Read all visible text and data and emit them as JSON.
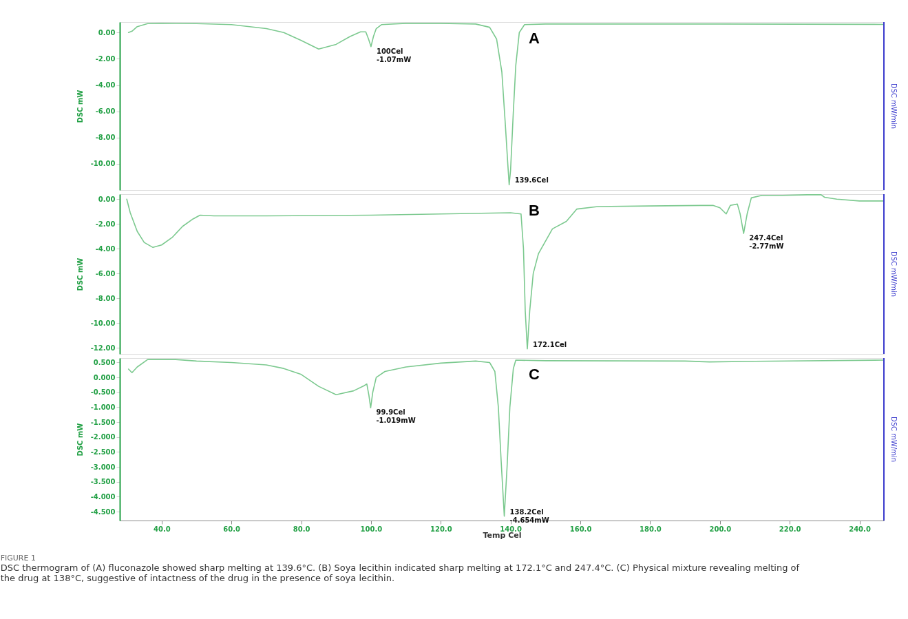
{
  "chart_data": [
    {
      "type": "line",
      "ylabel": "DSC mW",
      "y2label": "DSC mW/min",
      "xlim": [
        28,
        247
      ],
      "ylim": [
        -12,
        0.8
      ],
      "tick_labels": "y",
      "grid": false,
      "marker": "none",
      "line_style": "solid",
      "yticks": [
        {
          "value": 0,
          "label": "0.00"
        },
        {
          "value": -2,
          "label": "-2.00"
        },
        {
          "value": -4,
          "label": "-4.00"
        },
        {
          "value": -6,
          "label": "-6.00"
        },
        {
          "value": -8,
          "label": "-8.00"
        },
        {
          "value": -10,
          "label": "-10.00"
        }
      ],
      "annotations": [
        "A",
        {
          "text": "100Cel\n-1.07mW",
          "x": 100,
          "y": -1.07
        },
        {
          "text": "139.6Cel",
          "x": 139.6,
          "y": -11.6
        }
      ],
      "series": [
        {
          "color": "#7cc98f",
          "x": [
            30.5,
            31.5,
            33,
            36,
            40,
            50,
            60,
            70,
            75,
            80,
            85,
            90,
            94,
            97,
            98.5,
            99.3,
            100,
            100.7,
            101.5,
            103,
            110,
            120,
            130,
            134,
            136,
            137.5,
            138.5,
            139.2,
            139.6,
            140,
            140.8,
            141.5,
            142.5,
            144,
            150,
            200,
            247
          ],
          "values": [
            0,
            0.1,
            0.45,
            0.68,
            0.7,
            0.68,
            0.6,
            0.3,
            0,
            -0.6,
            -1.26,
            -0.9,
            -0.3,
            0.05,
            0.05,
            -0.5,
            -1.07,
            -0.3,
            0.3,
            0.6,
            0.7,
            0.7,
            0.65,
            0.4,
            -0.5,
            -3,
            -7,
            -10,
            -11.6,
            -10.5,
            -6,
            -2.5,
            0,
            0.6,
            0.65,
            0.65,
            0.62
          ]
        }
      ]
    },
    {
      "type": "line",
      "ylabel": "DSC mW",
      "y2label": "DSC mW/min",
      "xlim": [
        28,
        247
      ],
      "ylim": [
        -12.5,
        0.4
      ],
      "tick_labels": "y",
      "grid": false,
      "marker": "none",
      "line_style": "solid",
      "yticks": [
        {
          "value": 0,
          "label": "0.00"
        },
        {
          "value": -2,
          "label": "-2.00"
        },
        {
          "value": -4,
          "label": "-4.00"
        },
        {
          "value": -6,
          "label": "-6.00"
        },
        {
          "value": -8,
          "label": "-8.00"
        },
        {
          "value": -10,
          "label": "-10.00"
        },
        {
          "value": -12,
          "label": "-12.00"
        }
      ],
      "annotations": [
        "B",
        {
          "text": "172.1Cel",
          "x": 144.8,
          "y": -12.1
        },
        {
          "text": "247.4Cel\n-2.77mW",
          "x": 206.8,
          "y": -2.77
        }
      ],
      "series": [
        {
          "color": "#7cc98f",
          "x": [
            30,
            31,
            33,
            35,
            37.5,
            40,
            43,
            46,
            49,
            51,
            55,
            70,
            100,
            120,
            140,
            143,
            143.7,
            144.2,
            144.8,
            145.5,
            146.5,
            148,
            150,
            152,
            156,
            159,
            165,
            180,
            198,
            200,
            201.8,
            203,
            205,
            205.8,
            206.8,
            207.8,
            209,
            212,
            218,
            225,
            229,
            230,
            233.5,
            240,
            247
          ],
          "values": [
            0,
            -1.1,
            -2.6,
            -3.5,
            -3.9,
            -3.7,
            -3.1,
            -2.2,
            -1.6,
            -1.3,
            -1.35,
            -1.35,
            -1.3,
            -1.2,
            -1.1,
            -1.2,
            -4,
            -9,
            -12.1,
            -9,
            -6,
            -4.4,
            -3.4,
            -2.4,
            -1.8,
            -0.8,
            -0.6,
            -0.55,
            -0.5,
            -0.7,
            -1.2,
            -0.5,
            -0.4,
            -1.2,
            -2.77,
            -1.2,
            0.1,
            0.3,
            0.3,
            0.35,
            0.35,
            0.15,
            0,
            -0.15,
            -0.15
          ]
        }
      ]
    },
    {
      "type": "line",
      "xlabel": "Temp Cel",
      "ylabel": "DSC mW",
      "y2label": "DSC mW/min",
      "xlim": [
        28,
        247
      ],
      "ylim": [
        -4.8,
        0.65
      ],
      "grid": false,
      "marker": "none",
      "line_style": "solid",
      "xticks": [
        {
          "value": 40,
          "label": "40.0"
        },
        {
          "value": 60,
          "label": "60.0"
        },
        {
          "value": 80,
          "label": "80.0"
        },
        {
          "value": 100,
          "label": "100.0"
        },
        {
          "value": 120,
          "label": "120.0"
        },
        {
          "value": 140,
          "label": "140.0"
        },
        {
          "value": 160,
          "label": "160.0"
        },
        {
          "value": 180,
          "label": "180.0"
        },
        {
          "value": 200,
          "label": "200.0"
        },
        {
          "value": 220,
          "label": "220.0"
        },
        {
          "value": 240,
          "label": "240.0"
        }
      ],
      "yticks": [
        {
          "value": 0.5,
          "label": "0.500"
        },
        {
          "value": 0,
          "label": "0.000"
        },
        {
          "value": -0.5,
          "label": "-0.500"
        },
        {
          "value": -1,
          "label": "-1.000"
        },
        {
          "value": -1.5,
          "label": "-1.500"
        },
        {
          "value": -2,
          "label": "-2.000"
        },
        {
          "value": -2.5,
          "label": "-2.500"
        },
        {
          "value": -3,
          "label": "-3.000"
        },
        {
          "value": -3.5,
          "label": "-3.500"
        },
        {
          "value": -4,
          "label": "-4.000"
        },
        {
          "value": -4.5,
          "label": "-4.500"
        }
      ],
      "annotations": [
        "C",
        {
          "text": "99.9Cel\n-1.019mW",
          "x": 99.9,
          "y": -1.019
        },
        {
          "text": "138.2Cel\n-4.654mW",
          "x": 138.2,
          "y": -4.654
        },
        "FIGURE 1",
        "DSC thermogram of (A) fluconazole showed sharp melting at 139.6°C. (B) Soya lecithin indicated sharp melting at 172.1°C and 247.4°C. (C) Physical mixture revealing melting of the drug at 138°C, suggestive of intactness of the drug in the presence of soya lecithin."
      ],
      "series": [
        {
          "color": "#7cc98f",
          "x": [
            30.5,
            31.5,
            33,
            36,
            44,
            50,
            60,
            70,
            75,
            80,
            85,
            90,
            95,
            98,
            98.8,
            99.4,
            99.9,
            100.5,
            101.5,
            104,
            110,
            120,
            130,
            134,
            135.5,
            136.5,
            137.3,
            138.2,
            139,
            139.8,
            140.8,
            141.5,
            150,
            190,
            197,
            210,
            247
          ],
          "values": [
            0.28,
            0.16,
            0.35,
            0.6,
            0.6,
            0.55,
            0.5,
            0.42,
            0.3,
            0.1,
            -0.3,
            -0.58,
            -0.45,
            -0.28,
            -0.22,
            -0.6,
            -1.019,
            -0.5,
            0,
            0.2,
            0.35,
            0.48,
            0.55,
            0.5,
            0.2,
            -1,
            -2.8,
            -4.654,
            -3,
            -1,
            0.3,
            0.58,
            0.56,
            0.55,
            0.52,
            0.54,
            0.58
          ]
        }
      ]
    }
  ]
}
